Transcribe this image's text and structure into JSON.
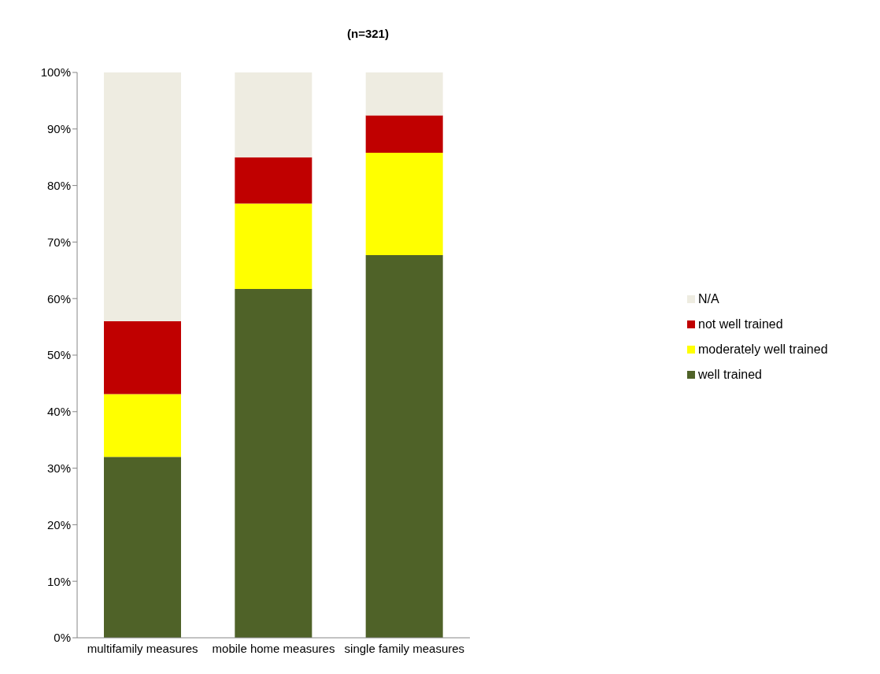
{
  "chart_data": {
    "type": "bar",
    "title": "(n=321)",
    "categories": [
      "multifamily measures",
      "mobile home measures",
      "single family measures"
    ],
    "stacked": true,
    "legend": "right",
    "grid": false,
    "ylim": [
      0,
      100
    ],
    "yticks": [
      {
        "value": 0,
        "label": "0%"
      },
      {
        "value": 10,
        "label": "10%"
      },
      {
        "value": 20,
        "label": "20%"
      },
      {
        "value": 30,
        "label": "30%"
      },
      {
        "value": 40,
        "label": "40%"
      },
      {
        "value": 50,
        "label": "50%"
      },
      {
        "value": 60,
        "label": "60%"
      },
      {
        "value": 70,
        "label": "70%"
      },
      {
        "value": 80,
        "label": "80%"
      },
      {
        "value": 90,
        "label": "90%"
      },
      {
        "value": 100,
        "label": "100%"
      }
    ],
    "series": [
      {
        "name": "well trained",
        "color": "#4f6228",
        "values": [
          32,
          61.7,
          67.7
        ]
      },
      {
        "name": "moderately well trained",
        "color": "#ffff00",
        "values": [
          11.1,
          15.1,
          18.1
        ]
      },
      {
        "name": "not well trained",
        "color": "#c00000",
        "values": [
          12.9,
          8.2,
          6.6
        ]
      },
      {
        "name": "N/A",
        "color": "#eeece1",
        "values": [
          44,
          15,
          7.6
        ]
      }
    ]
  }
}
